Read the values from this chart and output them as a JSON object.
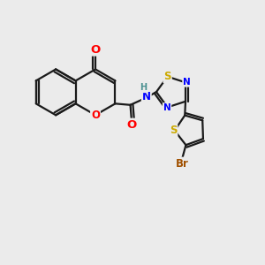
{
  "bg_color": "#ebebeb",
  "bond_color": "#1a1a1a",
  "bond_width": 1.6,
  "atom_colors": {
    "O": "#ff0000",
    "N": "#0000ff",
    "S": "#ccaa00",
    "Br": "#a05000",
    "H": "#4a9090",
    "C": "#1a1a1a"
  },
  "font_size": 8.5
}
